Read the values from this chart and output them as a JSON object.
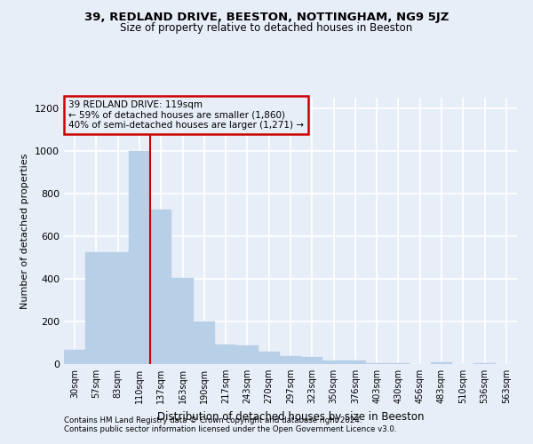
{
  "title1": "39, REDLAND DRIVE, BEESTON, NOTTINGHAM, NG9 5JZ",
  "title2": "Size of property relative to detached houses in Beeston",
  "xlabel": "Distribution of detached houses by size in Beeston",
  "ylabel": "Number of detached properties",
  "footer1": "Contains HM Land Registry data © Crown copyright and database right 2024.",
  "footer2": "Contains public sector information licensed under the Open Government Licence v3.0.",
  "annotation_title": "39 REDLAND DRIVE: 119sqm",
  "annotation_line1": "← 59% of detached houses are smaller (1,860)",
  "annotation_line2": "40% of semi-detached houses are larger (1,271) →",
  "bar_color": "#b8cfe8",
  "bar_edge_color": "#b8cfe8",
  "background_color": "#e8eef8",
  "grid_color": "#ffffff",
  "red_line_color": "#cc0000",
  "annotation_box_color": "#cc0000",
  "categories": [
    "30sqm",
    "57sqm",
    "83sqm",
    "110sqm",
    "137sqm",
    "163sqm",
    "190sqm",
    "217sqm",
    "243sqm",
    "270sqm",
    "297sqm",
    "323sqm",
    "350sqm",
    "376sqm",
    "403sqm",
    "430sqm",
    "456sqm",
    "483sqm",
    "510sqm",
    "536sqm",
    "563sqm"
  ],
  "values": [
    65,
    525,
    525,
    1000,
    725,
    405,
    198,
    90,
    87,
    60,
    38,
    32,
    18,
    18,
    5,
    5,
    0,
    10,
    0,
    5,
    0
  ],
  "red_line_x": 3.5,
  "ylim": [
    0,
    1250
  ],
  "yticks": [
    0,
    200,
    400,
    600,
    800,
    1000,
    1200
  ]
}
